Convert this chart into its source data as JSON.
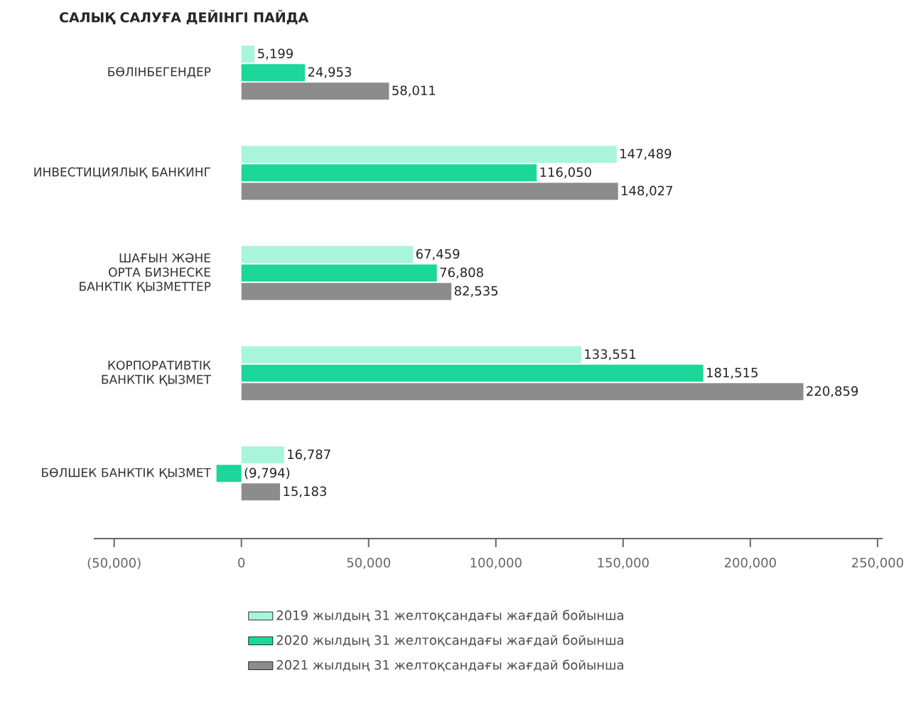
{
  "chart_data": {
    "type": "bar",
    "orientation": "horizontal",
    "title": "САЛЫҚ САЛУҒА ДЕЙІНГІ ПАЙДА",
    "categories": [
      "БӨЛІНБЕГЕНДЕР",
      "ИНВЕСТИЦИЯЛЫҚ БАНКИНГ",
      "ШАҒЫН ЖӘНЕ ОРТА БИЗНЕСКЕ БАНКТІК ҚЫЗМЕТТЕР",
      "КОРПОРАТИВТІК БАНКТІК ҚЫЗМЕТ",
      "БӨЛШЕК БАНКТІК ҚЫЗМЕТ"
    ],
    "series": [
      {
        "name": "2019 жылдың 31 желтоқсандағы жағдай бойынша",
        "color": "#a8f5dc",
        "values": [
          5199,
          147489,
          67459,
          133551,
          16787
        ],
        "value_labels": [
          "5,199",
          "147,489",
          "67,459",
          "133,551",
          "16,787"
        ]
      },
      {
        "name": "2020 жылдың 31 желтоқсандағы жағдай бойынша",
        "color": "#1dd69a",
        "values": [
          24953,
          116050,
          76808,
          181515,
          -9794
        ],
        "value_labels": [
          "24,953",
          "116,050",
          "76,808",
          "181,515",
          "(9,794)"
        ]
      },
      {
        "name": "2021 жылдың 31 желтоқсандағы жағдай бойынша",
        "color": "#8c8c8c",
        "values": [
          58011,
          148027,
          82535,
          220859,
          15183
        ],
        "value_labels": [
          "58,011",
          "148,027",
          "82,535",
          "220,859",
          "15,183"
        ]
      }
    ],
    "xlim": [
      -58000,
      252000
    ],
    "xticks": [
      {
        "value": -50000,
        "label": "(50,000)"
      },
      0,
      {
        "value": 50000,
        "label": "50,000"
      },
      {
        "value": 100000,
        "label": "100,000"
      },
      {
        "value": 150000,
        "label": "150,000"
      },
      {
        "value": 200000,
        "label": "200,000"
      },
      {
        "value": 250000,
        "label": "250,000"
      }
    ],
    "legend": "bottom"
  }
}
